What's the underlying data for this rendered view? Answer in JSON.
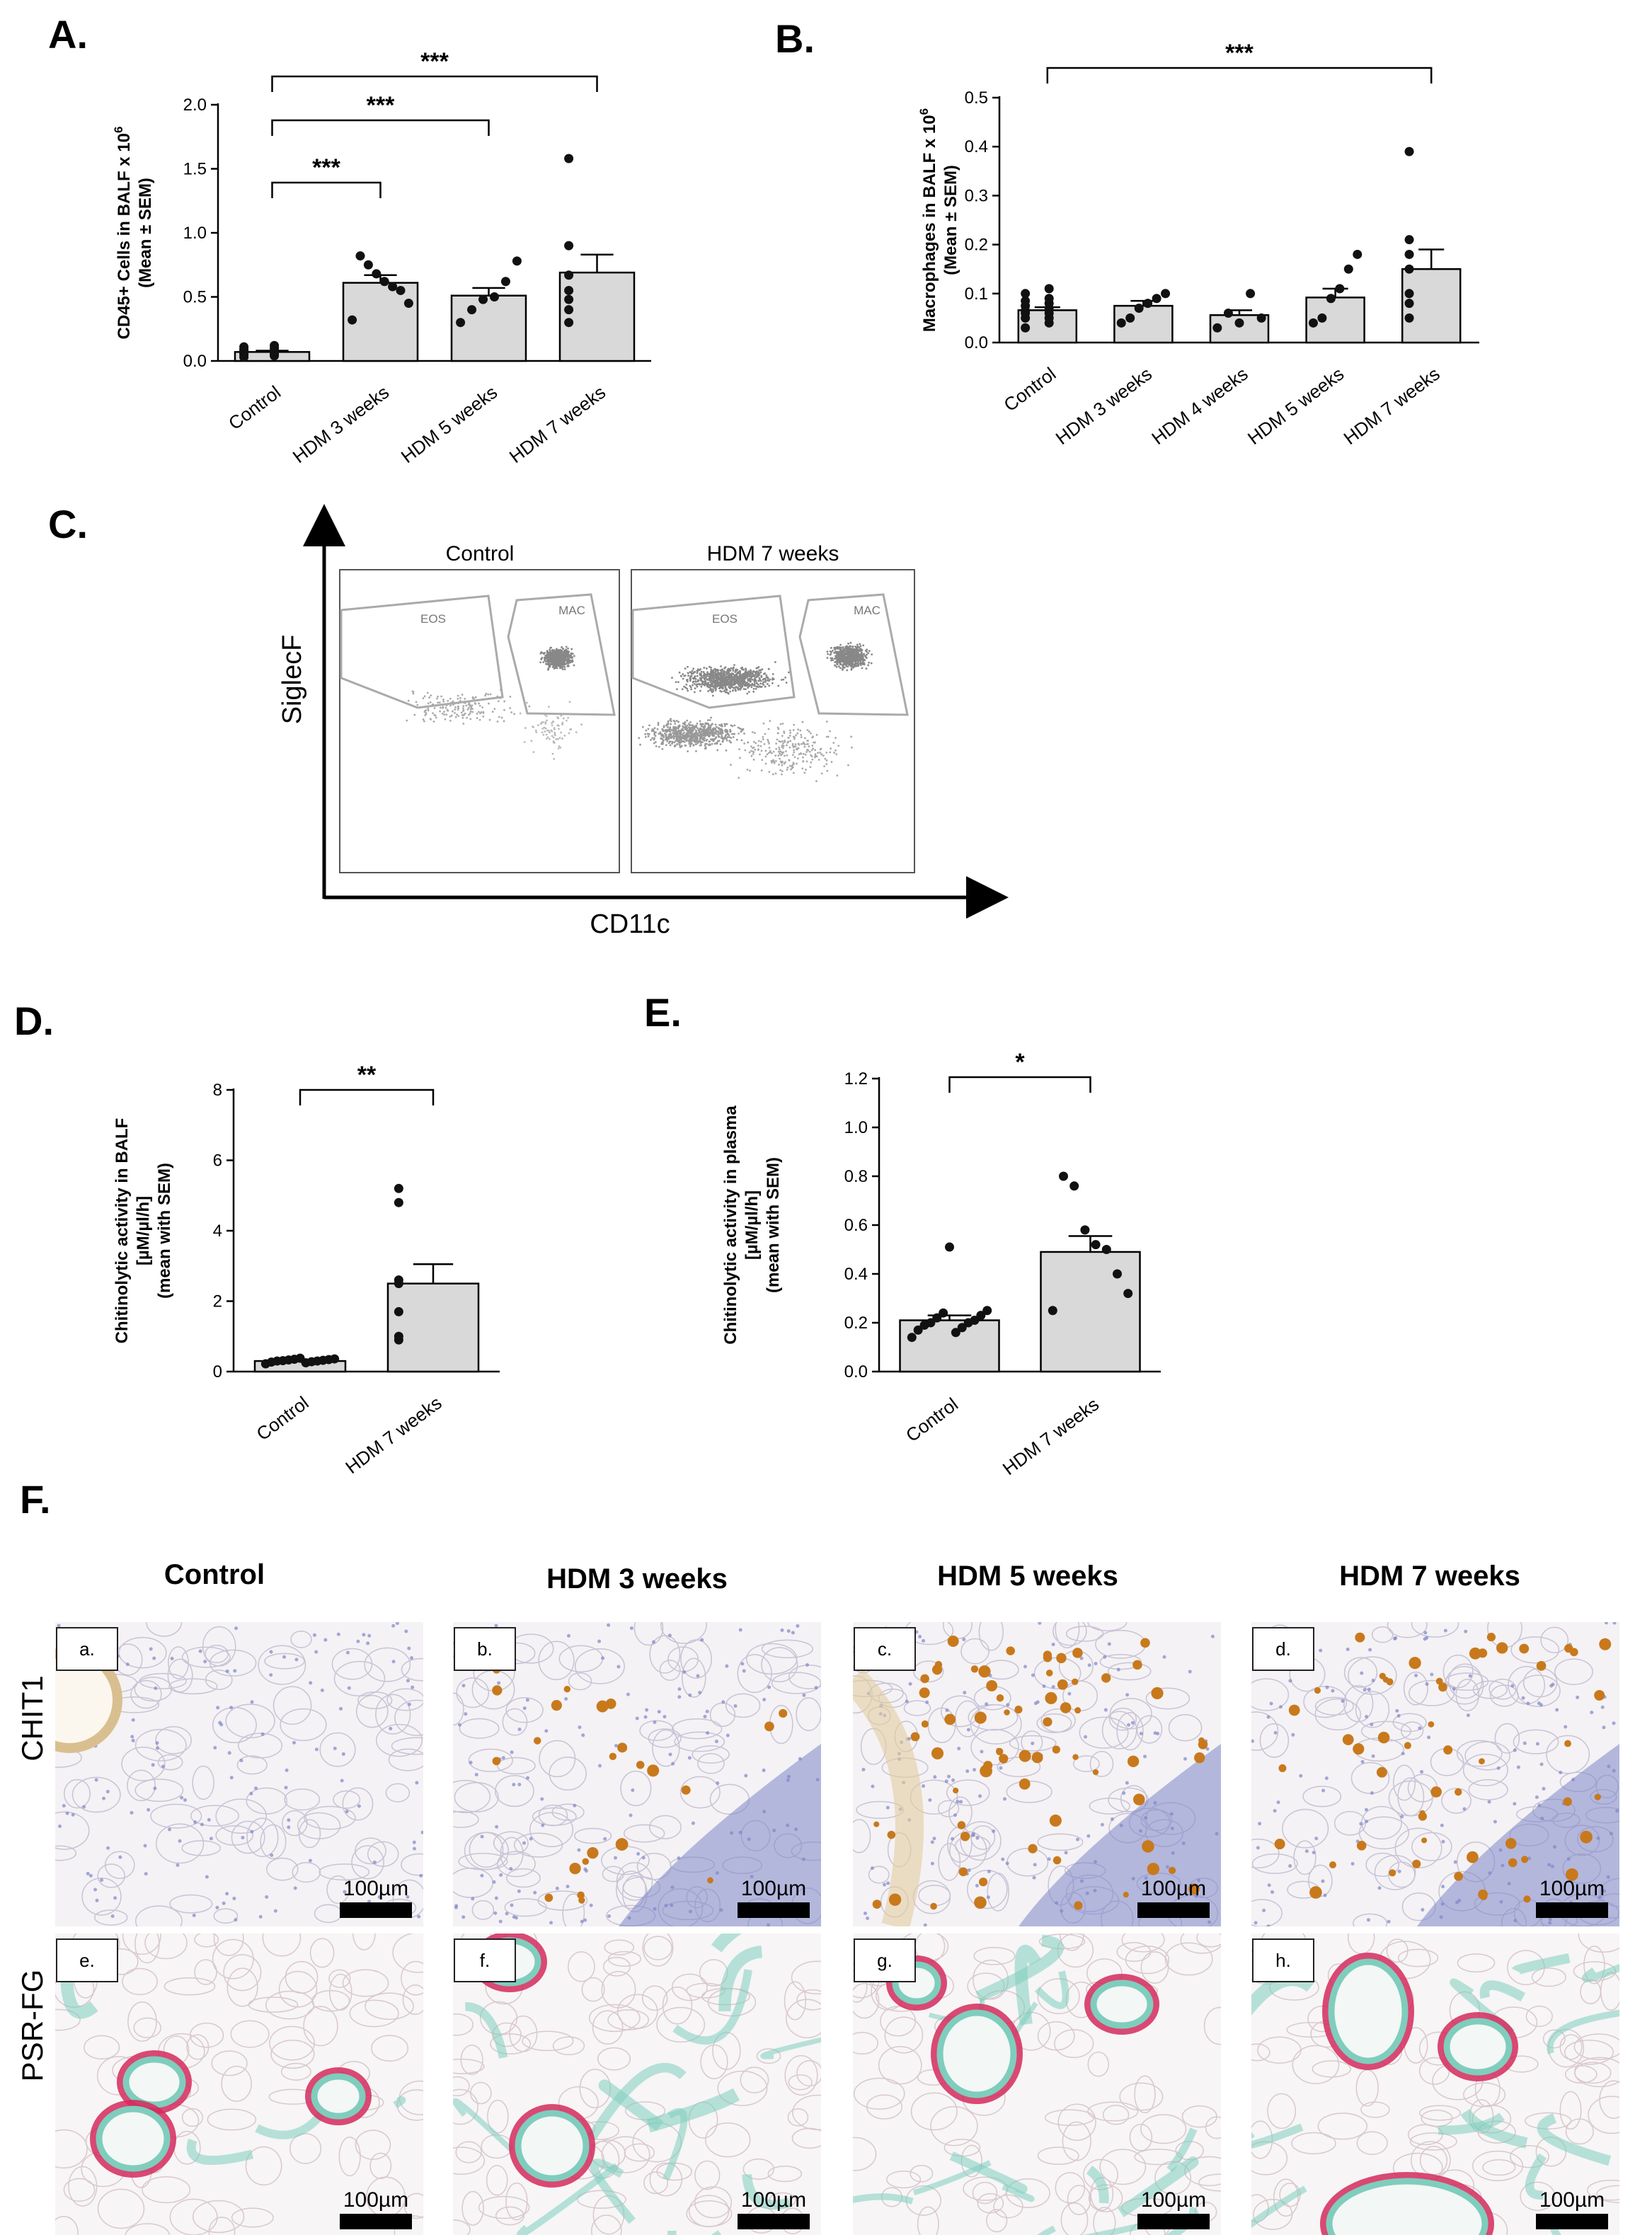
{
  "panels": {
    "A": "A.",
    "B": "B.",
    "C": "C.",
    "D": "D.",
    "E": "E.",
    "F": "F."
  },
  "chart_data": [
    {
      "id": "A",
      "type": "bar",
      "ylabel": [
        "CD45+ Cells in BALF x 10",
        "(Mean ± SEM)"
      ],
      "ylabel_sup": "6",
      "ylim": [
        0,
        2.0
      ],
      "yticks": [
        "0.0",
        "0.5",
        "1.0",
        "1.5",
        "2.0"
      ],
      "categories": [
        "Control",
        "HDM 3 weeks",
        "HDM 5 weeks",
        "HDM 7 weeks"
      ],
      "values": [
        0.07,
        0.61,
        0.51,
        0.69
      ],
      "errors": [
        0.01,
        0.06,
        0.06,
        0.14
      ],
      "points": [
        [
          0.03,
          0.04,
          0.05,
          0.05,
          0.06,
          0.06,
          0.07,
          0.07,
          0.08,
          0.08,
          0.09,
          0.1,
          0.11,
          0.12
        ],
        [
          0.32,
          0.45,
          0.55,
          0.58,
          0.62,
          0.68,
          0.75,
          0.82
        ],
        [
          0.3,
          0.4,
          0.48,
          0.5,
          0.62,
          0.78
        ],
        [
          0.3,
          0.4,
          0.48,
          0.55,
          0.67,
          0.9,
          1.58
        ]
      ],
      "significance": [
        {
          "from": 0,
          "to": 1,
          "label": "***"
        },
        {
          "from": 0,
          "to": 2,
          "label": "***"
        },
        {
          "from": 0,
          "to": 3,
          "label": "***"
        }
      ]
    },
    {
      "id": "B",
      "type": "bar",
      "ylabel": [
        "Macrophages in BALF x 10",
        "(Mean ± SEM)"
      ],
      "ylabel_sup": "6",
      "ylim": [
        0,
        0.5
      ],
      "yticks": [
        "0.0",
        "0.1",
        "0.2",
        "0.3",
        "0.4",
        "0.5"
      ],
      "categories": [
        "Control",
        "HDM 3 weeks",
        "HDM 4 weeks",
        "HDM 5 weeks",
        "HDM 7 weeks"
      ],
      "values": [
        0.066,
        0.075,
        0.056,
        0.092,
        0.15
      ],
      "errors": [
        0.006,
        0.01,
        0.01,
        0.018,
        0.04
      ],
      "points": [
        [
          0.03,
          0.04,
          0.05,
          0.05,
          0.06,
          0.06,
          0.065,
          0.07,
          0.075,
          0.08,
          0.085,
          0.09,
          0.1,
          0.11
        ],
        [
          0.04,
          0.05,
          0.07,
          0.08,
          0.09,
          0.1
        ],
        [
          0.03,
          0.04,
          0.05,
          0.06,
          0.1
        ],
        [
          0.04,
          0.05,
          0.09,
          0.11,
          0.15,
          0.18
        ],
        [
          0.05,
          0.08,
          0.1,
          0.15,
          0.18,
          0.21,
          0.39
        ]
      ],
      "significance": [
        {
          "from": 0,
          "to": 4,
          "label": "***"
        }
      ]
    },
    {
      "id": "D",
      "type": "bar",
      "ylabel": [
        "Chitinolytic activity in BALF",
        "[µM/µl/h]",
        "(mean with SEM)"
      ],
      "ylim": [
        0,
        8
      ],
      "yticks": [
        "0",
        "2",
        "4",
        "6",
        "8"
      ],
      "categories": [
        "Control",
        "HDM 7 weeks"
      ],
      "values": [
        0.3,
        2.5
      ],
      "errors": [
        0.03,
        0.55
      ],
      "points": [
        [
          0.22,
          0.25,
          0.27,
          0.28,
          0.3,
          0.3,
          0.31,
          0.32,
          0.33,
          0.34,
          0.35,
          0.36,
          0.38
        ],
        [
          0.9,
          1.0,
          1.7,
          2.5,
          2.6,
          4.8,
          5.2
        ]
      ],
      "significance": [
        {
          "from": 0,
          "to": 1,
          "label": "**"
        }
      ]
    },
    {
      "id": "E",
      "type": "bar",
      "ylabel": [
        "Chitinolytic activity in plasma",
        "[µM/µl/h]",
        "(mean with SEM)"
      ],
      "ylim": [
        0,
        1.2
      ],
      "yticks": [
        "0.0",
        "0.2",
        "0.4",
        "0.6",
        "0.8",
        "1.0",
        "1.2"
      ],
      "categories": [
        "Control",
        "HDM 7 weeks"
      ],
      "values": [
        0.21,
        0.49
      ],
      "errors": [
        0.02,
        0.065
      ],
      "points": [
        [
          0.14,
          0.16,
          0.17,
          0.18,
          0.19,
          0.2,
          0.2,
          0.21,
          0.22,
          0.23,
          0.24,
          0.25,
          0.51
        ],
        [
          0.25,
          0.32,
          0.4,
          0.5,
          0.52,
          0.58,
          0.76,
          0.8
        ]
      ],
      "significance": [
        {
          "from": 0,
          "to": 1,
          "label": "*"
        }
      ]
    }
  ],
  "flow": {
    "ylabel": "SiglecF",
    "xlabel": "CD11c",
    "plots": [
      {
        "title": "Control",
        "gates": [
          "EOS",
          "MAC"
        ]
      },
      {
        "title": "HDM 7 weeks",
        "gates": [
          "EOS",
          "MAC"
        ]
      }
    ]
  },
  "histology": {
    "columns": [
      "Control",
      "HDM 3 weeks",
      "HDM 5 weeks",
      "HDM 7 weeks"
    ],
    "rows": [
      "CHIT1",
      "PSR-FG"
    ],
    "tile_letters": [
      "a.",
      "b.",
      "c.",
      "d.",
      "e.",
      "f.",
      "g.",
      "h."
    ],
    "scale_label": "100µm"
  },
  "colors": {
    "bar_fill": "#d9d9d9",
    "ihc_background": "#f4f2f4",
    "ihc_nuclei": "#7d86c8",
    "chit1_stain": "#c8791c",
    "collagen_red": "#d42a5c",
    "fast_green": "#7fcdbd",
    "flow_dots": "#888888"
  }
}
